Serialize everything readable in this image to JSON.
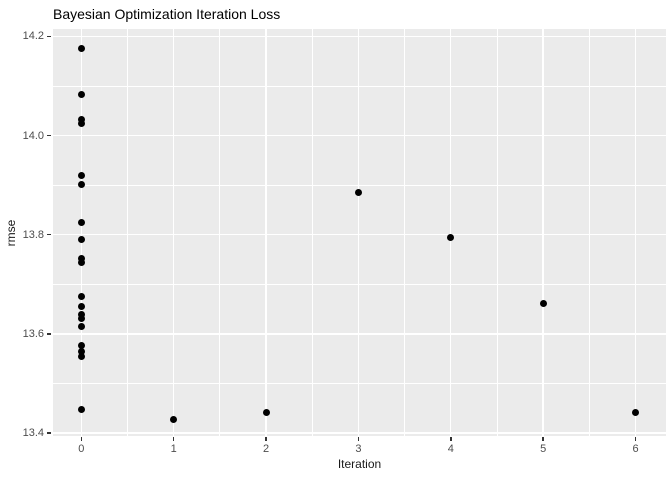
{
  "chart_data": {
    "type": "scatter",
    "title": "Bayesian Optimization Iteration Loss",
    "xlabel": "Iteration",
    "ylabel": "rmse",
    "xlim": [
      -0.306,
      6.33
    ],
    "ylim": [
      13.394,
      14.215
    ],
    "grid": "major-and-minor",
    "legend": "none",
    "panel_color": "#EBEBEB",
    "gridline_color": "#FFFFFF",
    "point_color": "#000000",
    "tick_label_color": "#4D4D4D",
    "x_major_ticks": [
      0,
      1,
      2,
      3,
      4,
      5,
      6
    ],
    "x_tick_labels": [
      "0",
      "1",
      "2",
      "3",
      "4",
      "5",
      "6"
    ],
    "x_minor_ticks": [
      0.5,
      1.5,
      2.5,
      3.5,
      4.5,
      5.5
    ],
    "y_major_ticks": [
      14.2,
      14.0,
      13.8,
      13.6,
      13.4
    ],
    "y_tick_labels": [
      "14.2",
      "14.0",
      "13.8",
      "13.6",
      "13.4"
    ],
    "y_minor_ticks": [
      14.1,
      13.9,
      13.7,
      13.5
    ],
    "points": [
      {
        "x": 0,
        "y": 14.175
      },
      {
        "x": 0,
        "y": 14.082
      },
      {
        "x": 0,
        "y": 14.033
      },
      {
        "x": 0,
        "y": 14.024
      },
      {
        "x": 0,
        "y": 13.92
      },
      {
        "x": 0,
        "y": 13.901
      },
      {
        "x": 0,
        "y": 13.825
      },
      {
        "x": 0,
        "y": 13.791
      },
      {
        "x": 0,
        "y": 13.753
      },
      {
        "x": 0,
        "y": 13.743
      },
      {
        "x": 0,
        "y": 13.675
      },
      {
        "x": 0,
        "y": 13.655
      },
      {
        "x": 0,
        "y": 13.639
      },
      {
        "x": 0,
        "y": 13.631
      },
      {
        "x": 0,
        "y": 13.614
      },
      {
        "x": 0,
        "y": 13.577
      },
      {
        "x": 0,
        "y": 13.565
      },
      {
        "x": 0,
        "y": 13.554
      },
      {
        "x": 0,
        "y": 13.448
      },
      {
        "x": 1,
        "y": 13.428
      },
      {
        "x": 2,
        "y": 13.441
      },
      {
        "x": 3,
        "y": 13.885
      },
      {
        "x": 4,
        "y": 13.795
      },
      {
        "x": 5,
        "y": 13.661
      },
      {
        "x": 6,
        "y": 13.442
      }
    ]
  }
}
